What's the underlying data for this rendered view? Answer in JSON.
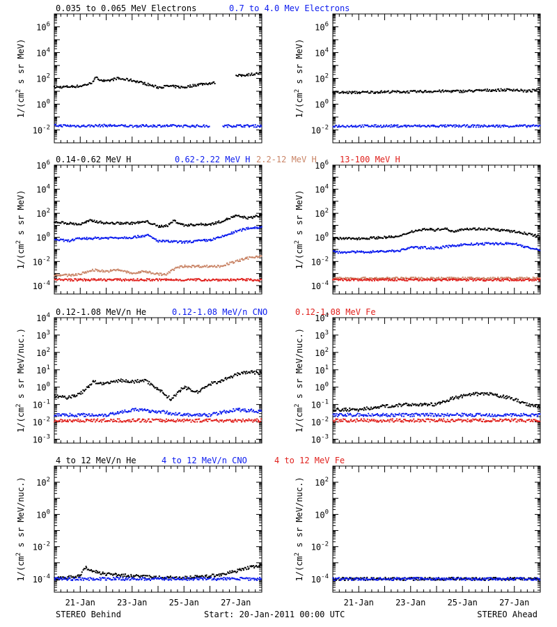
{
  "chart_data": {
    "type": "scatter",
    "layout": {
      "rows": 4,
      "columns": 2
    },
    "x": {
      "range_days": [
        0,
        8
      ],
      "ticks": [
        1,
        3,
        5,
        7
      ],
      "tick_labels": [
        "21-Jan",
        "23-Jan",
        "25-Jan",
        "27-Jan"
      ]
    },
    "footer": {
      "left": "STEREO Behind",
      "center": "Start: 20-Jan-2011 00:00 UTC",
      "right": "STEREO Ahead"
    },
    "colors": {
      "black": "#000000",
      "blue": "#0a1aee",
      "salmon": "#c98466",
      "red": "#e0201c"
    },
    "panels": [
      {
        "yscale": "log",
        "ylim": [
          0.001,
          10000000
        ],
        "ylabel": {
          "pre": "1/(cm",
          "sup": "2",
          "post": " s sr MeV)"
        },
        "yticks": [
          {
            "b": "10",
            "e": "-2",
            "v": 0.01
          },
          {
            "b": "10",
            "e": "0",
            "v": 1
          },
          {
            "b": "10",
            "e": "2",
            "v": 100
          },
          {
            "b": "10",
            "e": "4",
            "v": 10000
          },
          {
            "b": "10",
            "e": "6",
            "v": 1000000
          }
        ],
        "legend": [
          {
            "label": "0.035 to 0.065 MeV Electrons",
            "color": "black"
          },
          {
            "label": "0.7 to 4.0 Mev Electrons",
            "color": "blue"
          }
        ],
        "series": [
          {
            "color": "black",
            "spacecraft": "behind",
            "x": [
              0,
              1,
              1.4,
              1.6,
              2,
              2.4,
              3,
              3.4,
              4,
              4.4,
              5,
              5.6,
              6.2,
              6.6,
              7,
              7.5,
              8
            ],
            "y": [
              20,
              25,
              40,
              110,
              55,
              100,
              70,
              45,
              20,
              25,
              20,
              35,
              45,
              null,
              150,
              200,
              250
            ]
          },
          {
            "color": "blue",
            "spacecraft": "behind",
            "x": [
              0,
              1,
              2,
              3,
              4,
              5,
              6,
              6.2,
              6.5,
              7,
              8
            ],
            "y": [
              0.022,
              0.02,
              0.022,
              0.02,
              0.021,
              0.02,
              0.02,
              null,
              0.02,
              0.021,
              0.02
            ]
          },
          {
            "color": "black",
            "spacecraft": "ahead",
            "x": [
              0,
              1,
              2,
              3,
              4,
              5,
              6,
              7,
              7.5,
              8
            ],
            "y": [
              8,
              8,
              9,
              9,
              10,
              10,
              12,
              13,
              10,
              13
            ]
          },
          {
            "color": "blue",
            "spacecraft": "ahead",
            "x": [
              0,
              1,
              2,
              3,
              4,
              5,
              6,
              7,
              8
            ],
            "y": [
              0.02,
              0.02,
              0.02,
              0.02,
              0.02,
              0.02,
              0.02,
              0.02,
              0.02
            ]
          }
        ]
      },
      {
        "yscale": "log",
        "ylim": [
          2e-05,
          1000000
        ],
        "ylabel": {
          "pre": "1/(cm",
          "sup": "2",
          "post": " s sr MeV)"
        },
        "yticks": [
          {
            "b": "10",
            "e": "-4",
            "v": 0.0001
          },
          {
            "b": "10",
            "e": "-2",
            "v": 0.01
          },
          {
            "b": "10",
            "e": "0",
            "v": 1
          },
          {
            "b": "10",
            "e": "2",
            "v": 100
          },
          {
            "b": "10",
            "e": "4",
            "v": 10000
          },
          {
            "b": "10",
            "e": "6",
            "v": 1000000
          }
        ],
        "legend": [
          {
            "label": "0.14-0.62 MeV H",
            "color": "black"
          },
          {
            "label": "0.62-2.22 MeV H",
            "color": "blue"
          },
          {
            "label": "2.2-12 MeV H",
            "color": "salmon"
          },
          {
            "label": "13-100 MeV H",
            "color": "red"
          }
        ],
        "series": [
          {
            "color": "black",
            "spacecraft": "behind",
            "x": [
              0,
              0.5,
              1,
              1.4,
              2,
              3,
              3.6,
              4,
              4.4,
              4.6,
              5,
              5.6,
              6,
              6.4,
              7,
              7.5,
              8
            ],
            "y": [
              20,
              15,
              12,
              25,
              15,
              15,
              20,
              8,
              10,
              25,
              10,
              12,
              12,
              20,
              60,
              40,
              70
            ]
          },
          {
            "color": "blue",
            "spacecraft": "behind",
            "x": [
              0,
              0.5,
              1,
              2,
              3,
              3.6,
              4,
              5,
              6,
              6.4,
              7,
              7.5,
              8
            ],
            "y": [
              0.7,
              0.5,
              0.8,
              0.9,
              1.0,
              1.5,
              0.5,
              0.4,
              0.6,
              1.0,
              3,
              6,
              7
            ]
          },
          {
            "color": "salmon",
            "spacecraft": "behind",
            "x": [
              0,
              0.5,
              1,
              1.5,
              2,
              2.5,
              3,
              3.5,
              4,
              4.3,
              4.7,
              5,
              6,
              6.4,
              7,
              7.5,
              8
            ],
            "y": [
              0.0008,
              0.0007,
              0.0009,
              0.002,
              0.0015,
              0.002,
              0.001,
              0.0015,
              0.0009,
              0.0008,
              0.003,
              0.004,
              0.004,
              0.004,
              0.01,
              0.02,
              0.03
            ]
          },
          {
            "color": "red",
            "spacecraft": "behind",
            "x": [
              0,
              2,
              4,
              6,
              8
            ],
            "y": [
              0.0003,
              0.0003,
              0.0003,
              0.0003,
              0.0003
            ]
          },
          {
            "color": "black",
            "spacecraft": "ahead",
            "x": [
              0,
              1,
              2,
              2.6,
              3,
              3.6,
              4,
              4.3,
              4.6,
              5,
              6,
              7,
              7.5,
              8
            ],
            "y": [
              0.8,
              0.8,
              1.0,
              1.2,
              3,
              5,
              4,
              6,
              3,
              5,
              5,
              3,
              2,
              1.2
            ]
          },
          {
            "color": "blue",
            "spacecraft": "ahead",
            "x": [
              0,
              1,
              2,
              2.6,
              3,
              4,
              5,
              6,
              7,
              7.5,
              8
            ],
            "y": [
              0.06,
              0.06,
              0.07,
              0.08,
              0.15,
              0.13,
              0.25,
              0.3,
              0.3,
              0.15,
              0.08
            ]
          },
          {
            "color": "salmon",
            "spacecraft": "ahead",
            "x": [
              0,
              4,
              8
            ],
            "y": [
              0.0004,
              0.0004,
              0.0004
            ]
          },
          {
            "color": "red",
            "spacecraft": "ahead",
            "x": [
              0,
              2,
              4,
              6,
              8
            ],
            "y": [
              0.0003,
              0.0003,
              0.0003,
              0.0003,
              0.0003
            ]
          }
        ]
      },
      {
        "yscale": "log",
        "ylim": [
          0.0006,
          10000
        ],
        "ylabel": {
          "pre": "1/(cm",
          "sup": "2",
          "post": " s sr MeV/nuc.)"
        },
        "yticks": [
          {
            "b": "10",
            "e": "-3",
            "v": 0.001
          },
          {
            "b": "10",
            "e": "-2",
            "v": 0.01
          },
          {
            "b": "10",
            "e": "-1",
            "v": 0.1
          },
          {
            "b": "10",
            "e": "0",
            "v": 1
          },
          {
            "b": "10",
            "e": "1",
            "v": 10
          },
          {
            "b": "10",
            "e": "2",
            "v": 100
          },
          {
            "b": "10",
            "e": "3",
            "v": 1000
          },
          {
            "b": "10",
            "e": "4",
            "v": 10000
          }
        ],
        "legend": [
          {
            "label": "0.12-1.08 MeV/n He",
            "color": "black"
          },
          {
            "label": "0.12-1.08 MeV/n CNO",
            "color": "blue"
          },
          {
            "label": "0.12-1.08 MeV Fe",
            "color": "red"
          }
        ],
        "series": [
          {
            "color": "black",
            "spacecraft": "behind",
            "x": [
              0,
              0.5,
              1,
              1.5,
              2,
              2.5,
              3,
              3.5,
              4,
              4.5,
              5,
              5.5,
              6,
              6.5,
              7,
              7.5,
              8
            ],
            "y": [
              0.3,
              0.25,
              0.4,
              2,
              1.5,
              2.5,
              2,
              2.5,
              0.8,
              0.2,
              1.0,
              0.5,
              1.5,
              2.5,
              5,
              8,
              6
            ]
          },
          {
            "color": "blue",
            "spacecraft": "behind",
            "x": [
              0,
              2,
              3,
              4,
              5,
              6,
              7,
              8
            ],
            "y": [
              0.025,
              0.025,
              0.05,
              0.04,
              0.025,
              0.025,
              0.05,
              0.04
            ]
          },
          {
            "color": "red",
            "spacecraft": "behind",
            "x": [
              0,
              2,
              4,
              6,
              8
            ],
            "y": [
              0.012,
              0.012,
              0.012,
              0.012,
              0.012
            ]
          },
          {
            "color": "black",
            "spacecraft": "ahead",
            "x": [
              0,
              1,
              2,
              3,
              4,
              4.5,
              5,
              5.5,
              6,
              6.5,
              7,
              7.5,
              8
            ],
            "y": [
              0.05,
              0.05,
              0.08,
              0.1,
              0.1,
              0.2,
              0.3,
              0.4,
              0.4,
              0.3,
              0.2,
              0.1,
              0.08
            ]
          },
          {
            "color": "blue",
            "spacecraft": "ahead",
            "x": [
              0,
              2,
              4,
              6,
              8
            ],
            "y": [
              0.025,
              0.025,
              0.025,
              0.025,
              0.025
            ]
          },
          {
            "color": "red",
            "spacecraft": "ahead",
            "x": [
              0,
              2,
              4,
              6,
              8
            ],
            "y": [
              0.012,
              0.012,
              0.012,
              0.012,
              0.012
            ]
          }
        ]
      },
      {
        "yscale": "log",
        "ylim": [
          1.5e-05,
          1000
        ],
        "ylabel": {
          "pre": "1/(cm",
          "sup": "2",
          "post": " s sr MeV/nuc.)"
        },
        "yticks": [
          {
            "b": "10",
            "e": "-4",
            "v": 0.0001
          },
          {
            "b": "10",
            "e": "-2",
            "v": 0.01
          },
          {
            "b": "10",
            "e": "0",
            "v": 1
          },
          {
            "b": "10",
            "e": "2",
            "v": 100
          }
        ],
        "legend": [
          {
            "label": "4 to 12 MeV/n He",
            "color": "black"
          },
          {
            "label": "4 to 12 MeV/n CNO",
            "color": "blue"
          },
          {
            "label": "4 to 12 MeV Fe",
            "color": "red"
          }
        ],
        "series": [
          {
            "color": "black",
            "spacecraft": "behind",
            "x": [
              0,
              1,
              1.2,
              1.5,
              2,
              3,
              4,
              5,
              6,
              6.5,
              7,
              7.5,
              8
            ],
            "y": [
              0.0001,
              0.00015,
              0.0005,
              0.0003,
              0.0002,
              0.00015,
              0.00012,
              0.00012,
              0.00015,
              0.0002,
              0.0003,
              0.0005,
              0.0007
            ]
          },
          {
            "color": "blue",
            "spacecraft": "behind",
            "x": [
              0,
              2,
              4,
              6,
              8
            ],
            "y": [
              0.0001,
              0.0001,
              0.0001,
              0.0001,
              0.0001
            ]
          },
          {
            "color": "black",
            "spacecraft": "ahead",
            "x": [
              0,
              3,
              5,
              6.5,
              8
            ],
            "y": [
              0.0001,
              0.0001,
              0.0001,
              0.0001,
              0.0001
            ]
          },
          {
            "color": "blue",
            "spacecraft": "ahead",
            "x": [
              0,
              2,
              4,
              6,
              8
            ],
            "y": [
              0.0001,
              0.0001,
              0.0001,
              0.0001,
              0.0001
            ]
          }
        ]
      }
    ]
  }
}
